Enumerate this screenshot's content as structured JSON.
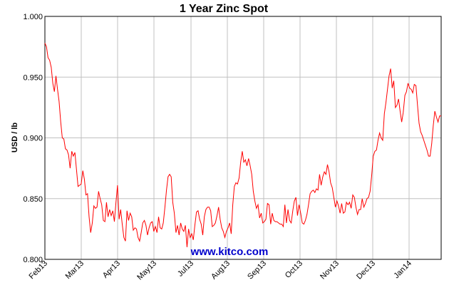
{
  "chart_data": {
    "type": "line",
    "title": "1 Year Zinc Spot",
    "xlabel": "",
    "ylabel": "USD / lb",
    "ylim": [
      0.8,
      1.0
    ],
    "yticks": [
      "0.800",
      "0.850",
      "0.900",
      "0.950",
      "1.000"
    ],
    "xticks": [
      "Feb13",
      "Mar13",
      "Apr13",
      "May13",
      "Jul13",
      "Aug13",
      "Sep13",
      "Oct13",
      "Nov13",
      "Dec13",
      "Jan14"
    ],
    "grid": true,
    "line_color": "#ff0000",
    "series": [
      {
        "values": [
          0.978,
          0.975,
          0.966,
          0.964,
          0.958,
          0.945,
          0.938,
          0.951,
          0.94,
          0.93,
          0.913,
          0.9,
          0.899,
          0.891,
          0.89,
          0.886,
          0.875,
          0.889,
          0.885,
          0.888,
          0.874,
          0.86,
          0.861,
          0.862,
          0.873,
          0.866,
          0.853,
          0.854,
          0.835,
          0.822,
          0.83,
          0.844,
          0.842,
          0.843,
          0.856,
          0.85,
          0.845,
          0.832,
          0.831,
          0.847,
          0.835,
          0.841,
          0.836,
          0.84,
          0.831,
          0.847,
          0.861,
          0.833,
          0.841,
          0.829,
          0.818,
          0.815,
          0.84,
          0.832,
          0.838,
          0.835,
          0.824,
          0.826,
          0.825,
          0.818,
          0.815,
          0.822,
          0.83,
          0.832,
          0.828,
          0.82,
          0.826,
          0.83,
          0.831,
          0.823,
          0.827,
          0.822,
          0.835,
          0.826,
          0.825,
          0.83,
          0.843,
          0.857,
          0.868,
          0.87,
          0.868,
          0.847,
          0.838,
          0.822,
          0.828,
          0.82,
          0.83,
          0.825,
          0.823,
          0.828,
          0.81,
          0.825,
          0.818,
          0.821,
          0.816,
          0.828,
          0.839,
          0.84,
          0.833,
          0.829,
          0.82,
          0.835,
          0.841,
          0.843,
          0.843,
          0.84,
          0.827,
          0.828,
          0.83,
          0.836,
          0.843,
          0.833,
          0.826,
          0.823,
          0.818,
          0.823,
          0.826,
          0.83,
          0.821,
          0.845,
          0.86,
          0.863,
          0.862,
          0.867,
          0.88,
          0.889,
          0.88,
          0.882,
          0.877,
          0.883,
          0.877,
          0.87,
          0.856,
          0.848,
          0.842,
          0.845,
          0.834,
          0.838,
          0.83,
          0.831,
          0.833,
          0.846,
          0.845,
          0.829,
          0.838,
          0.832,
          0.831,
          0.831,
          0.83,
          0.829,
          0.829,
          0.827,
          0.845,
          0.83,
          0.841,
          0.832,
          0.83,
          0.84,
          0.848,
          0.851,
          0.836,
          0.845,
          0.838,
          0.83,
          0.829,
          0.832,
          0.837,
          0.845,
          0.854,
          0.856,
          0.857,
          0.855,
          0.858,
          0.857,
          0.87,
          0.861,
          0.868,
          0.872,
          0.87,
          0.878,
          0.872,
          0.863,
          0.859,
          0.851,
          0.843,
          0.848,
          0.844,
          0.838,
          0.846,
          0.838,
          0.839,
          0.847,
          0.845,
          0.847,
          0.842,
          0.853,
          0.851,
          0.843,
          0.837,
          0.841,
          0.841,
          0.85,
          0.843,
          0.846,
          0.85,
          0.851,
          0.856,
          0.869,
          0.885,
          0.889,
          0.89,
          0.898,
          0.904,
          0.9,
          0.898,
          0.92,
          0.929,
          0.94,
          0.951,
          0.957,
          0.941,
          0.947,
          0.925,
          0.927,
          0.932,
          0.922,
          0.913,
          0.921,
          0.935,
          0.938,
          0.945,
          0.941,
          0.94,
          0.937,
          0.944,
          0.943,
          0.927,
          0.912,
          0.905,
          0.902,
          0.898,
          0.894,
          0.89,
          0.885,
          0.885,
          0.895,
          0.91,
          0.922,
          0.917,
          0.913,
          0.918,
          0.918
        ]
      }
    ]
  },
  "watermark": "www.kitco.com",
  "colors": {
    "line": "#ff0000",
    "watermark": "#0000cc",
    "grid": "#c0c0c0",
    "axis": "#000000"
  }
}
